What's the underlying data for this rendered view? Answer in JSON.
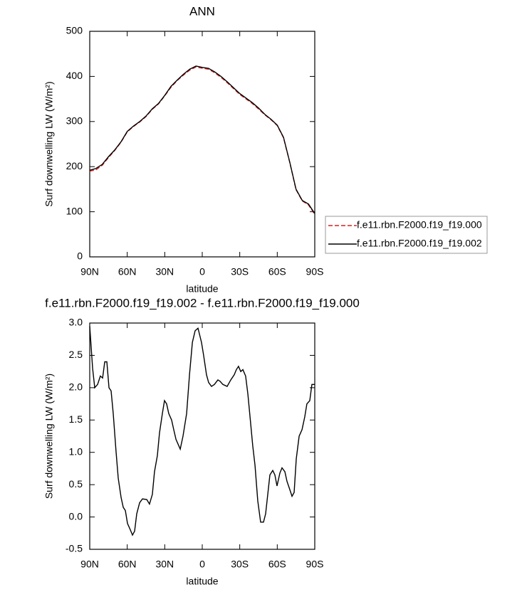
{
  "chart_data": [
    {
      "type": "line",
      "title": "ANN",
      "x_label": "latitude",
      "y_label": "Surf downwelling LW (W/m²)",
      "x": [
        90,
        85,
        80,
        75,
        70,
        65,
        60,
        55,
        50,
        45,
        40,
        35,
        30,
        25,
        20,
        15,
        10,
        5,
        0,
        -5,
        -10,
        -15,
        -20,
        -25,
        -30,
        -35,
        -40,
        -45,
        -50,
        -55,
        -60,
        -65,
        -70,
        -75,
        -80,
        -85,
        -90
      ],
      "series": [
        {
          "name": "f.e11.rbn.F2000.f19_f19.000",
          "color": "#d62020",
          "line_style": "dashed",
          "values": [
            190,
            193,
            203,
            220,
            236,
            254,
            277,
            289,
            299,
            311,
            327,
            339,
            357,
            376,
            391,
            403,
            414,
            421,
            418,
            416,
            408,
            398,
            386,
            373,
            360,
            350,
            340,
            328,
            315,
            304,
            291,
            264,
            209,
            149,
            124,
            115,
            94
          ]
        },
        {
          "name": "f.e11.rbn.F2000.f19_f19.002",
          "color": "#000000",
          "line_style": "solid",
          "values": [
            192,
            196,
            205,
            222,
            237,
            255,
            278,
            290,
            300,
            312,
            328,
            340,
            358,
            378,
            392,
            405,
            416,
            423,
            420,
            418,
            410,
            400,
            388,
            375,
            362,
            352,
            342,
            330,
            316,
            305,
            292,
            265,
            210,
            150,
            125,
            117,
            96
          ]
        }
      ],
      "xlim": [
        90,
        -90
      ],
      "xticks": [
        {
          "value": 90,
          "label": "90N"
        },
        {
          "value": 60,
          "label": "60N"
        },
        {
          "value": 30,
          "label": "30N"
        },
        0,
        {
          "value": -30,
          "label": "30S"
        },
        {
          "value": -60,
          "label": "60S"
        },
        {
          "value": -90,
          "label": "90S"
        }
      ],
      "ylim": [
        0,
        500
      ],
      "yticks": [
        0,
        100,
        200,
        300,
        400,
        500
      ],
      "legend": "right"
    },
    {
      "type": "line",
      "title": "f.e11.rbn.F2000.f19_f19.002 - f.e11.rbn.F2000.f19_f19.000",
      "x_label": "latitude",
      "y_label": "Surf downwelling LW (W/m²)",
      "x": [
        90,
        87.7,
        86.0,
        83.7,
        81.5,
        79.7,
        78.0,
        76.3,
        74.6,
        72.9,
        71.2,
        68.9,
        67.2,
        64.9,
        63.2,
        61.5,
        59.8,
        57.5,
        55.8,
        54.1,
        52.4,
        50.1,
        47.8,
        44.4,
        42.2,
        39.9,
        38.2,
        35.9,
        34.2,
        31.9,
        30.2,
        28.5,
        26.8,
        24.5,
        22.8,
        21.0,
        17.6,
        15.4,
        12.5,
        10.2,
        7.9,
        5.7,
        3.4,
        0.6,
        -1.1,
        -3.4,
        -5.1,
        -7.4,
        -9.7,
        -12.5,
        -14.2,
        -16.5,
        -19.9,
        -22.8,
        -25.6,
        -27.3,
        -29.0,
        -30.8,
        -32.5,
        -34.7,
        -36.5,
        -38.7,
        -40.4,
        -42.2,
        -44.4,
        -46.7,
        -49.0,
        -50.7,
        -52.4,
        -54.1,
        -56.4,
        -58.1,
        -59.8,
        -62.1,
        -63.8,
        -66.1,
        -67.8,
        -70.1,
        -71.8,
        -73.5,
        -75.2,
        -77.5,
        -79.8,
        -82.0,
        -83.7,
        -86.0,
        -87.7,
        -90
      ],
      "values": [
        2.95,
        2.3,
        2.0,
        2.05,
        2.18,
        2.15,
        2.4,
        2.4,
        2.0,
        1.95,
        1.6,
        1.0,
        0.6,
        0.3,
        0.15,
        0.1,
        -0.1,
        -0.2,
        -0.28,
        -0.22,
        0.05,
        0.22,
        0.28,
        0.27,
        0.2,
        0.35,
        0.7,
        0.95,
        1.3,
        1.6,
        1.8,
        1.75,
        1.6,
        1.5,
        1.35,
        1.2,
        1.05,
        1.25,
        1.6,
        2.2,
        2.7,
        2.88,
        2.92,
        2.7,
        2.5,
        2.2,
        2.08,
        2.02,
        2.05,
        2.12,
        2.1,
        2.05,
        2.02,
        2.12,
        2.2,
        2.28,
        2.33,
        2.25,
        2.28,
        2.18,
        1.9,
        1.45,
        1.1,
        0.8,
        0.25,
        -0.08,
        -0.08,
        0.05,
        0.35,
        0.65,
        0.72,
        0.65,
        0.48,
        0.68,
        0.76,
        0.7,
        0.55,
        0.42,
        0.32,
        0.38,
        0.9,
        1.25,
        1.35,
        1.55,
        1.75,
        1.8,
        2.05,
        2.05
      ],
      "color": "#000000",
      "xlim": [
        90,
        -90
      ],
      "xticks": [
        {
          "value": 90,
          "label": "90N"
        },
        {
          "value": 60,
          "label": "60N"
        },
        {
          "value": 30,
          "label": "30N"
        },
        0,
        {
          "value": -30,
          "label": "30S"
        },
        {
          "value": -60,
          "label": "60S"
        },
        {
          "value": -90,
          "label": "90S"
        }
      ],
      "ylim": [
        -0.5,
        3.0
      ],
      "yticks": [
        -0.5,
        {
          "value": 0,
          "label": "0.0"
        },
        0.5,
        {
          "value": 1,
          "label": "1.0"
        },
        1.5,
        {
          "value": 2,
          "label": "2.0"
        },
        2.5,
        {
          "value": 3,
          "label": "3.0"
        }
      ]
    }
  ]
}
